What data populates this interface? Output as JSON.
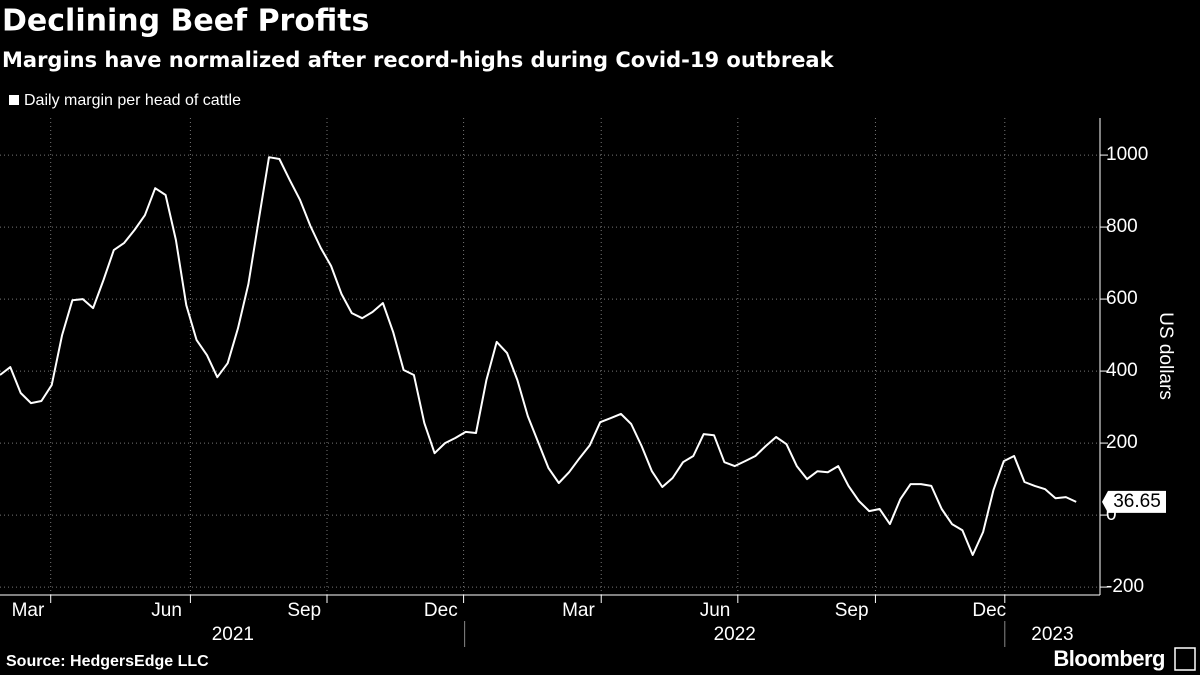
{
  "chart_data": {
    "type": "line",
    "title": "Declining Beef Profits",
    "subtitle": "Margins have normalized after record-highs during Covid-19 outbreak",
    "y_label": "US dollars",
    "source": "Source: HedgersEdge LLC",
    "brand": "Bloomberg",
    "grid": true,
    "x": [
      0,
      1,
      2,
      3,
      4,
      5,
      6,
      7,
      8,
      9,
      10,
      11,
      12,
      13,
      14,
      15,
      16,
      17,
      18,
      19,
      20,
      21,
      22,
      23,
      24,
      25,
      26,
      27,
      28,
      29,
      30,
      31,
      32,
      33,
      34,
      35,
      36,
      37,
      38,
      39,
      40,
      41,
      42,
      43,
      44,
      45,
      46,
      47,
      48,
      49,
      50,
      51,
      52,
      53,
      54,
      55,
      56,
      57,
      58,
      59,
      60,
      61,
      62,
      63,
      64,
      65,
      66,
      67,
      68,
      69,
      70,
      71,
      72,
      73,
      74,
      75,
      76,
      77,
      78,
      79,
      80,
      81,
      82,
      83,
      84,
      85,
      86,
      87,
      88,
      89,
      90,
      91,
      92,
      93,
      94,
      95,
      96,
      97,
      98,
      99,
      100,
      101,
      102,
      103,
      104
    ],
    "series": [
      {
        "name": "Daily margin per head of cattle",
        "color": "#ffffff",
        "values": [
          389,
          411,
          339,
          311,
          317,
          361,
          500,
          597,
          600,
          575,
          653,
          736,
          756,
          792,
          833,
          908,
          889,
          764,
          583,
          486,
          444,
          383,
          422,
          519,
          642,
          819,
          994,
          989,
          931,
          875,
          803,
          742,
          692,
          614,
          561,
          547,
          564,
          589,
          508,
          403,
          389,
          256,
          172,
          200,
          214,
          231,
          228,
          375,
          481,
          450,
          375,
          275,
          203,
          131,
          89,
          119,
          158,
          194,
          258,
          269,
          281,
          253,
          192,
          122,
          78,
          103,
          147,
          164,
          225,
          222,
          147,
          136,
          150,
          164,
          192,
          217,
          197,
          136,
          100,
          122,
          119,
          136,
          81,
          39,
          11,
          17,
          -25,
          44,
          86,
          86,
          81,
          17,
          -25,
          -42,
          -111,
          -47,
          69,
          150,
          164,
          92,
          81,
          72,
          47,
          50,
          36.65
        ]
      }
    ],
    "last_value_label": "36.65",
    "xlim": [
      0,
      106.3
    ],
    "ylim": [
      -222,
      1103
    ],
    "yticks": [
      -200,
      0,
      200,
      400,
      600,
      800,
      1000
    ],
    "xticks": [
      {
        "value": 2.7,
        "label": "Mar"
      },
      {
        "value": 16.1,
        "label": "Jun"
      },
      {
        "value": 29.4,
        "label": "Sep"
      },
      {
        "value": 42.6,
        "label": "Dec"
      },
      {
        "value": 55.9,
        "label": "Mar"
      },
      {
        "value": 69.1,
        "label": "Jun"
      },
      {
        "value": 82.3,
        "label": "Sep"
      },
      {
        "value": 95.6,
        "label": "Dec"
      }
    ],
    "xgrid": [
      4.9,
      18.4,
      31.6,
      44.8,
      58.1,
      71.3,
      84.6,
      97.1
    ],
    "year_labels": [
      {
        "value": 22.5,
        "label": "2021"
      },
      {
        "value": 71.0,
        "label": "2022"
      },
      {
        "value": 101.7,
        "label": "2023"
      }
    ],
    "year_separators": [
      44.9,
      97.1
    ]
  }
}
